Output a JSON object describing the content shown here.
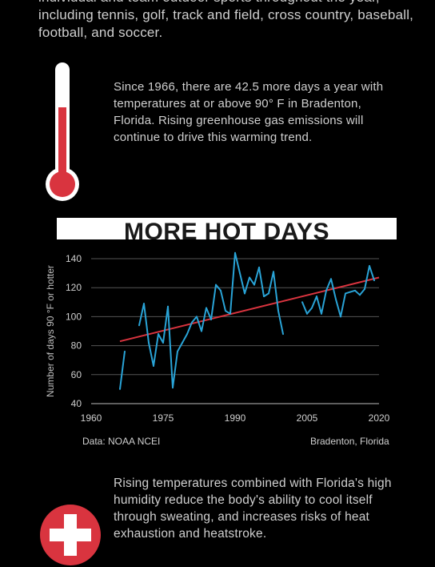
{
  "intro_text": "individual and team outdoor sports throughout the year, including tennis, golf, track and field, cross country, baseball, football, and soccer.",
  "fact_text": "Since 1966, there are 42.5 more days a year with temperatures at or above 90° F in Bradenton, Florida. Rising greenhouse gas emissions will continue to drive this warming trend.",
  "source_label": "Data: NOAA NCEI",
  "location_label": "Bradenton, Florida",
  "bottom_text": "Rising temperatures combined with Florida's high humidity reduce the body's ability to cool itself through sweating, and increases risks of heat exhaustion and heatstroke.",
  "icons": {
    "thermometer": "thermometer-icon",
    "first_aid": "first-aid-cross-icon"
  },
  "colors": {
    "line": "#29a3d6",
    "trend": "#d9343f",
    "thermometer": "#d9343f",
    "grid": "#555555"
  },
  "chart_data": {
    "type": "line",
    "title": "MORE HOT DAYS",
    "xlabel": "",
    "ylabel": "Number of days 90 °F or hotter",
    "xlim": [
      1960,
      2020
    ],
    "ylim": [
      40,
      140
    ],
    "xticks": [
      1960,
      1975,
      1990,
      2005,
      2020
    ],
    "yticks": [
      40,
      60,
      80,
      100,
      120,
      140
    ],
    "grid": true,
    "series": [
      {
        "values": [
          [
            1966,
            50
          ],
          [
            1967,
            76
          ],
          [
            1968,
            null
          ],
          [
            1969,
            null
          ],
          [
            1970,
            94
          ],
          [
            1971,
            109
          ],
          [
            1972,
            82
          ],
          [
            1973,
            66
          ],
          [
            1974,
            88
          ],
          [
            1975,
            82
          ],
          [
            1976,
            107
          ],
          [
            1977,
            51
          ],
          [
            1978,
            76
          ],
          [
            1979,
            82
          ],
          [
            1980,
            88
          ],
          [
            1981,
            96
          ],
          [
            1982,
            100
          ],
          [
            1983,
            90
          ],
          [
            1984,
            106
          ],
          [
            1985,
            98
          ],
          [
            1986,
            122
          ],
          [
            1987,
            118
          ],
          [
            1988,
            104
          ],
          [
            1989,
            102
          ],
          [
            1990,
            144
          ],
          [
            1991,
            130
          ],
          [
            1992,
            116
          ],
          [
            1993,
            127
          ],
          [
            1994,
            122
          ],
          [
            1995,
            134
          ],
          [
            1996,
            114
          ],
          [
            1997,
            116
          ],
          [
            1998,
            131
          ],
          [
            1999,
            104
          ],
          [
            2000,
            88
          ],
          [
            2001,
            null
          ],
          [
            2002,
            null
          ],
          [
            2003,
            null
          ],
          [
            2004,
            110
          ],
          [
            2005,
            102
          ],
          [
            2006,
            106
          ],
          [
            2007,
            114
          ],
          [
            2008,
            102
          ],
          [
            2009,
            118
          ],
          [
            2010,
            126
          ],
          [
            2011,
            112
          ],
          [
            2012,
            100
          ],
          [
            2013,
            116
          ],
          [
            2014,
            117
          ],
          [
            2015,
            118
          ],
          [
            2016,
            115
          ],
          [
            2017,
            119
          ],
          [
            2018,
            135
          ],
          [
            2019,
            125
          ]
        ]
      },
      {
        "type": "trend",
        "values": [
          [
            1966,
            83
          ],
          [
            2020,
            127
          ]
        ]
      }
    ]
  }
}
